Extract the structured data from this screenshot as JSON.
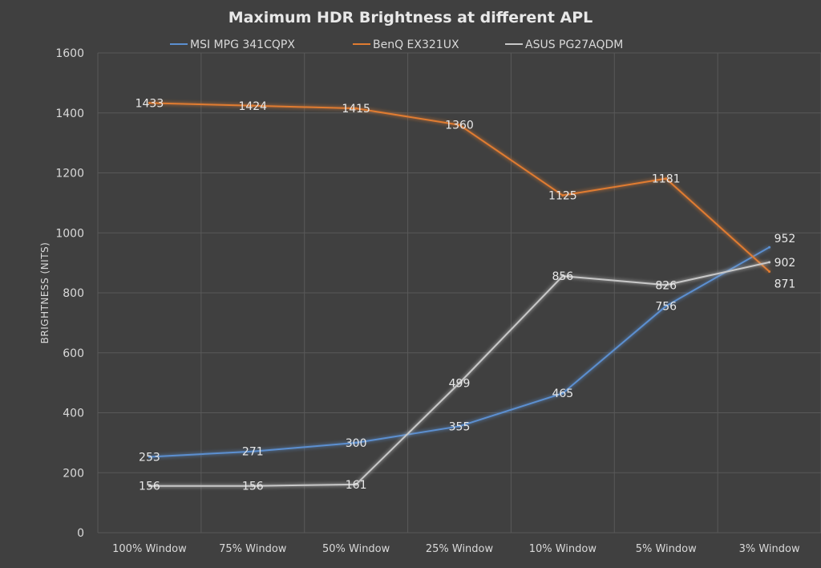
{
  "chart_data": {
    "type": "line",
    "title": "Maximum HDR Brightness at different APL",
    "xlabel": "",
    "ylabel": "BRIGHTNESS (NITS)",
    "ylim": [
      0,
      1600
    ],
    "yticks": [
      0,
      200,
      400,
      600,
      800,
      1000,
      1200,
      1400,
      1600
    ],
    "grid": true,
    "legend_position": "top",
    "categories": [
      "100% Window",
      "75% Window",
      "50% Window",
      "25% Window",
      "10% Window",
      "5% Window",
      "3% Window"
    ],
    "series": [
      {
        "name": "MSI MPG 341CQPX",
        "color": "#5b8fd0",
        "values": [
          253,
          271,
          300,
          355,
          465,
          756,
          952
        ]
      },
      {
        "name": "BenQ EX321UX",
        "color": "#e07b30",
        "values": [
          1433,
          1424,
          1415,
          1360,
          1125,
          1181,
          871
        ]
      },
      {
        "name": "ASUS PG27AQDM",
        "color": "#c8c8c8",
        "values": [
          156,
          156,
          161,
          499,
          856,
          826,
          902
        ]
      }
    ]
  }
}
